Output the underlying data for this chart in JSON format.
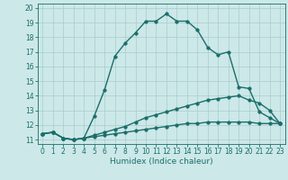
{
  "title": "",
  "xlabel": "Humidex (Indice chaleur)",
  "bg_color": "#cce8e8",
  "line_color": "#1a6e6a",
  "grid_color": "#aacccc",
  "xlim": [
    -0.5,
    23.5
  ],
  "ylim": [
    10.7,
    20.3
  ],
  "xticks": [
    0,
    1,
    2,
    3,
    4,
    5,
    6,
    7,
    8,
    9,
    10,
    11,
    12,
    13,
    14,
    15,
    16,
    17,
    18,
    19,
    20,
    21,
    22,
    23
  ],
  "yticks": [
    11,
    12,
    13,
    14,
    15,
    16,
    17,
    18,
    19,
    20
  ],
  "line1_x": [
    0,
    1,
    2,
    3,
    4,
    5,
    6,
    7,
    8,
    9,
    10,
    11,
    12,
    13,
    14,
    15,
    16,
    17,
    18,
    19,
    20,
    21,
    22,
    23
  ],
  "line1_y": [
    11.4,
    11.5,
    11.1,
    11.0,
    11.1,
    12.6,
    14.4,
    16.7,
    17.6,
    18.3,
    19.1,
    19.1,
    19.6,
    19.1,
    19.1,
    18.5,
    17.3,
    16.8,
    17.0,
    14.6,
    14.5,
    12.9,
    12.5,
    12.1
  ],
  "line2_x": [
    0,
    1,
    2,
    3,
    4,
    5,
    6,
    7,
    8,
    9,
    10,
    11,
    12,
    13,
    14,
    15,
    16,
    17,
    18,
    19,
    20,
    21,
    22,
    23
  ],
  "line2_y": [
    11.4,
    11.5,
    11.1,
    11.0,
    11.1,
    11.3,
    11.5,
    11.7,
    11.9,
    12.2,
    12.5,
    12.7,
    12.9,
    13.1,
    13.3,
    13.5,
    13.7,
    13.8,
    13.9,
    14.0,
    13.7,
    13.5,
    13.0,
    12.1
  ],
  "line3_x": [
    0,
    1,
    2,
    3,
    4,
    5,
    6,
    7,
    8,
    9,
    10,
    11,
    12,
    13,
    14,
    15,
    16,
    17,
    18,
    19,
    20,
    21,
    22,
    23
  ],
  "line3_y": [
    11.4,
    11.5,
    11.1,
    11.0,
    11.1,
    11.2,
    11.3,
    11.4,
    11.5,
    11.6,
    11.7,
    11.8,
    11.9,
    12.0,
    12.1,
    12.1,
    12.2,
    12.2,
    12.2,
    12.2,
    12.2,
    12.1,
    12.1,
    12.1
  ],
  "xlabel_fontsize": 6.5,
  "tick_fontsize": 5.5,
  "marker": "o",
  "markersize": 2.5,
  "linewidth": 1.0
}
